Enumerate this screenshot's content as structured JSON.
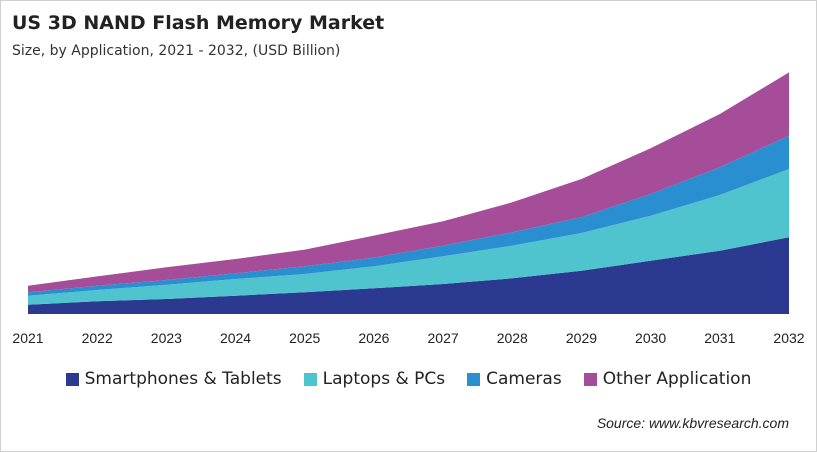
{
  "title": "US 3D NAND Flash Memory Market",
  "subtitle": "Size, by Application, 2021 - 2032, (USD Billion)",
  "source": "Source: www.kbvresearch.com",
  "chart_data": {
    "type": "area",
    "stacked": true,
    "title": "US 3D NAND Flash Memory Market",
    "subtitle": "Size, by Application, 2021 - 2032, (USD Billion)",
    "x": [
      "2021",
      "2022",
      "2023",
      "2024",
      "2025",
      "2026",
      "2027",
      "2028",
      "2029",
      "2030",
      "2031",
      "2032"
    ],
    "y_axis_shown": false,
    "grid": false,
    "legend_position": "bottom",
    "series": [
      {
        "name": "Smartphones & Tablets",
        "color": "#2b3990",
        "values": [
          9.3,
          12.7,
          15,
          18.3,
          21.7,
          25.7,
          30,
          35.7,
          43.3,
          53.3,
          63.3,
          76.7
        ]
      },
      {
        "name": "Laptops & PCs",
        "color": "#4fc4cf",
        "values": [
          9,
          11.3,
          14.3,
          16.7,
          18.3,
          22,
          27.7,
          32.7,
          37.7,
          45,
          55.7,
          68.3
        ]
      },
      {
        "name": "Cameras",
        "color": "#2a8fd0",
        "values": [
          3.3,
          4.3,
          4.7,
          5.7,
          7.7,
          8.7,
          10.7,
          13.3,
          15.7,
          21.7,
          27.7,
          33.3
        ]
      },
      {
        "name": "Other Application",
        "color": "#a64d9a",
        "values": [
          6.7,
          9.3,
          12.7,
          14.3,
          16.7,
          22,
          24.3,
          30,
          38.3,
          45.7,
          53.3,
          63.3
        ]
      }
    ]
  }
}
